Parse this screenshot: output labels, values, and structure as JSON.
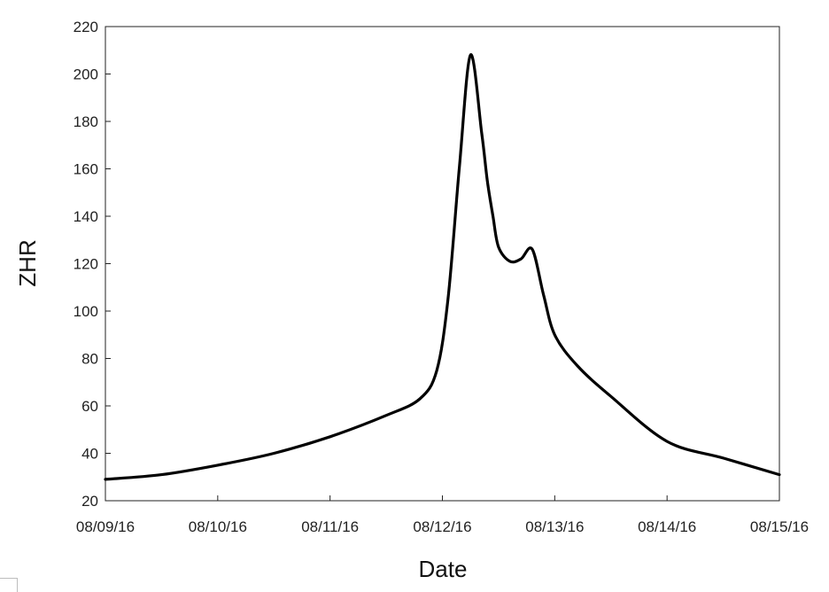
{
  "chart_data": {
    "type": "line",
    "title": "",
    "xlabel": "Date",
    "ylabel": "ZHR",
    "x_ticks": [
      "08/09/16",
      "08/10/16",
      "08/11/16",
      "08/12/16",
      "08/13/16",
      "08/14/16",
      "08/15/16"
    ],
    "y_ticks": [
      20,
      40,
      60,
      80,
      100,
      120,
      140,
      160,
      180,
      200,
      220
    ],
    "ylim": [
      20,
      220
    ],
    "xlim": [
      "08/09/16 00:00",
      "08/15/16 00:00"
    ],
    "grid": false,
    "legend": "none",
    "line_color": "#000000",
    "series": [
      {
        "x": [
          "08/09/16 00:00",
          "08/09/16 12:00",
          "08/10/16 00:00",
          "08/10/16 12:00",
          "08/11/16 00:00",
          "08/11/16 12:00",
          "08/11/16 19:12",
          "08/11/16 22:48",
          "08/12/16 01:12",
          "08/12/16 03:36",
          "08/12/16 06:00",
          "08/12/16 08:24",
          "08/12/16 09:36",
          "08/12/16 10:48",
          "08/12/16 12:00",
          "08/12/16 14:24",
          "08/12/16 16:48",
          "08/12/16 19:12",
          "08/12/16 21:36",
          "08/13/16 00:00",
          "08/13/16 04:48",
          "08/13/16 12:00",
          "08/14/16 00:00",
          "08/14/16 12:00",
          "08/15/16 00:00"
        ],
        "values": [
          29,
          31,
          35,
          40,
          47,
          56,
          63,
          75,
          105,
          160,
          208,
          175,
          155,
          140,
          127,
          121,
          122,
          126,
          107,
          90,
          77,
          64,
          45,
          38,
          31
        ]
      }
    ]
  }
}
